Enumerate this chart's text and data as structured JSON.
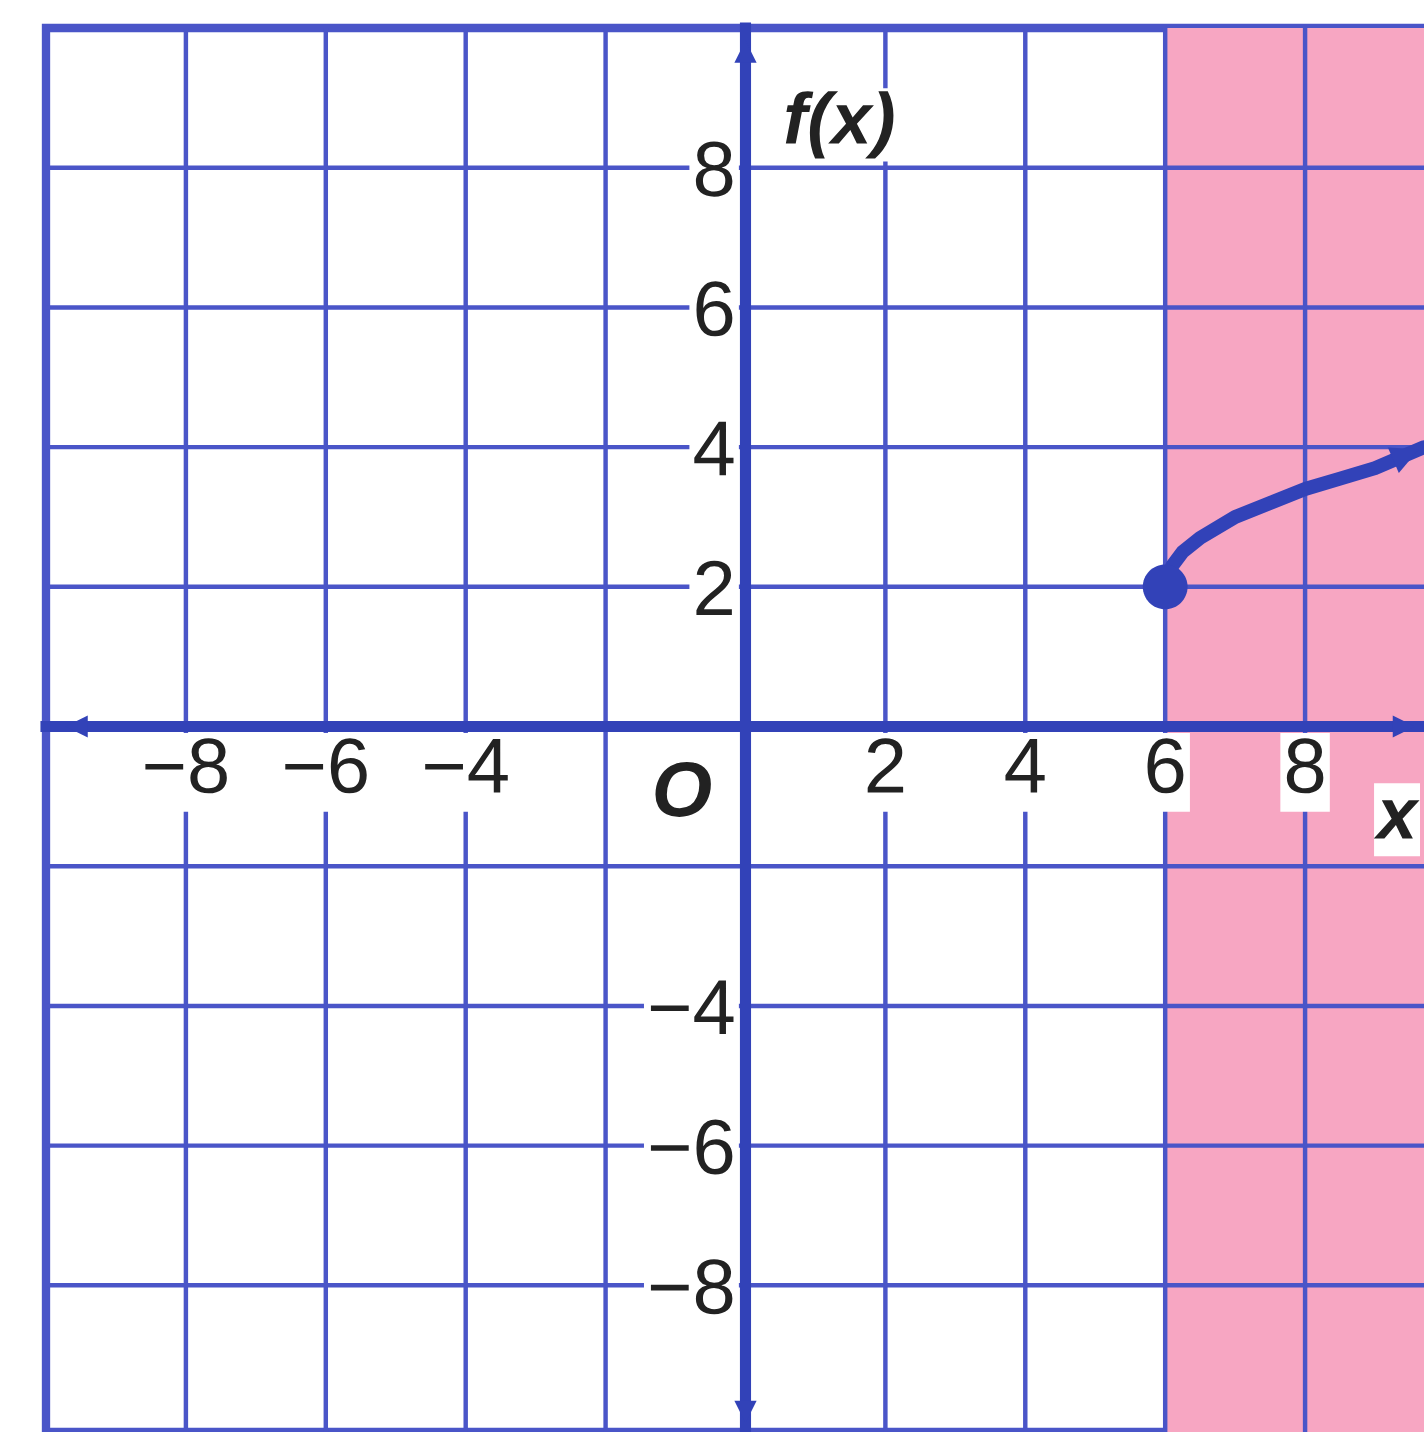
{
  "chart_data": {
    "type": "line",
    "xlabel": "x",
    "ylabel": "f(x)",
    "x": [
      6,
      6.1,
      6.25,
      6.5,
      7,
      7.5,
      8,
      8.5,
      9,
      9.7
    ],
    "series": [
      {
        "color": "#3242b8",
        "values": [
          2,
          2.3,
          2.5,
          2.7,
          3.0,
          3.2,
          3.4,
          3.55,
          3.7,
          4.0
        ]
      },
      {
        "type": "scatter",
        "color": "#3242b8",
        "x": [
          6
        ],
        "values": [
          2
        ]
      }
    ],
    "bands": [
      {
        "axis": "x",
        "from": 6,
        "to": 9.7,
        "color": "#f7a6c2"
      }
    ],
    "annotations": [
      "O"
    ],
    "xlim": [
      -10,
      9.7
    ],
    "ylim": [
      -10.1,
      10
    ],
    "xticks": [
      {
        "value": -8,
        "label": "−8"
      },
      {
        "value": -6,
        "label": "−6"
      },
      {
        "value": -4,
        "label": "−4"
      },
      {
        "value": -2,
        "label": null
      },
      {
        "value": 0,
        "label": null
      },
      2,
      4,
      6,
      8
    ],
    "yticks": [
      {
        "value": -8,
        "label": "−8"
      },
      {
        "value": -6,
        "label": "−6"
      },
      {
        "value": -4,
        "label": "−4"
      },
      {
        "value": -2,
        "label": null
      },
      {
        "value": 0,
        "label": null
      },
      2,
      4,
      6,
      8
    ],
    "grid": true
  }
}
